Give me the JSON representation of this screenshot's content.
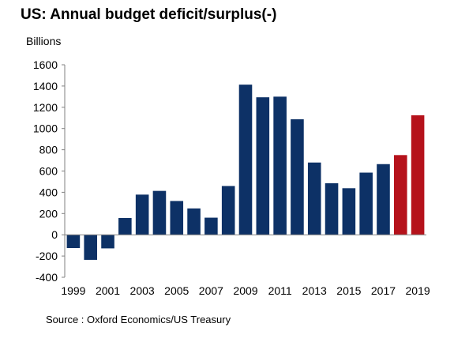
{
  "chart_data": {
    "type": "bar",
    "title": "US: Annual budget deficit/surplus(-)",
    "ylabel": "Billions",
    "xlabel": "",
    "source": "Source : Oxford Economics/US Treasury",
    "categories": [
      "1999",
      "2000",
      "2001",
      "2002",
      "2003",
      "2004",
      "2005",
      "2006",
      "2007",
      "2008",
      "2009",
      "2010",
      "2011",
      "2012",
      "2013",
      "2014",
      "2015",
      "2016",
      "2017",
      "2018",
      "2019"
    ],
    "values": [
      -125,
      -236,
      -128,
      158,
      378,
      413,
      318,
      248,
      161,
      459,
      1413,
      1294,
      1300,
      1087,
      680,
      485,
      438,
      585,
      665,
      750,
      1125
    ],
    "bar_colors": [
      "#0d3166",
      "#0d3166",
      "#0d3166",
      "#0d3166",
      "#0d3166",
      "#0d3166",
      "#0d3166",
      "#0d3166",
      "#0d3166",
      "#0d3166",
      "#0d3166",
      "#0d3166",
      "#0d3166",
      "#0d3166",
      "#0d3166",
      "#0d3166",
      "#0d3166",
      "#0d3166",
      "#0d3166",
      "#b5121b",
      "#b5121b"
    ],
    "x_tick_labels": [
      "1999",
      "",
      "2001",
      "",
      "2003",
      "",
      "2005",
      "",
      "2007",
      "",
      "2009",
      "",
      "2011",
      "",
      "2013",
      "",
      "2015",
      "",
      "2017",
      "",
      "2019"
    ],
    "y_ticks": [
      -400,
      -200,
      0,
      200,
      400,
      600,
      800,
      1000,
      1200,
      1400,
      1600
    ],
    "ylim": [
      -400,
      1600
    ],
    "grid": false,
    "legend": "none"
  }
}
